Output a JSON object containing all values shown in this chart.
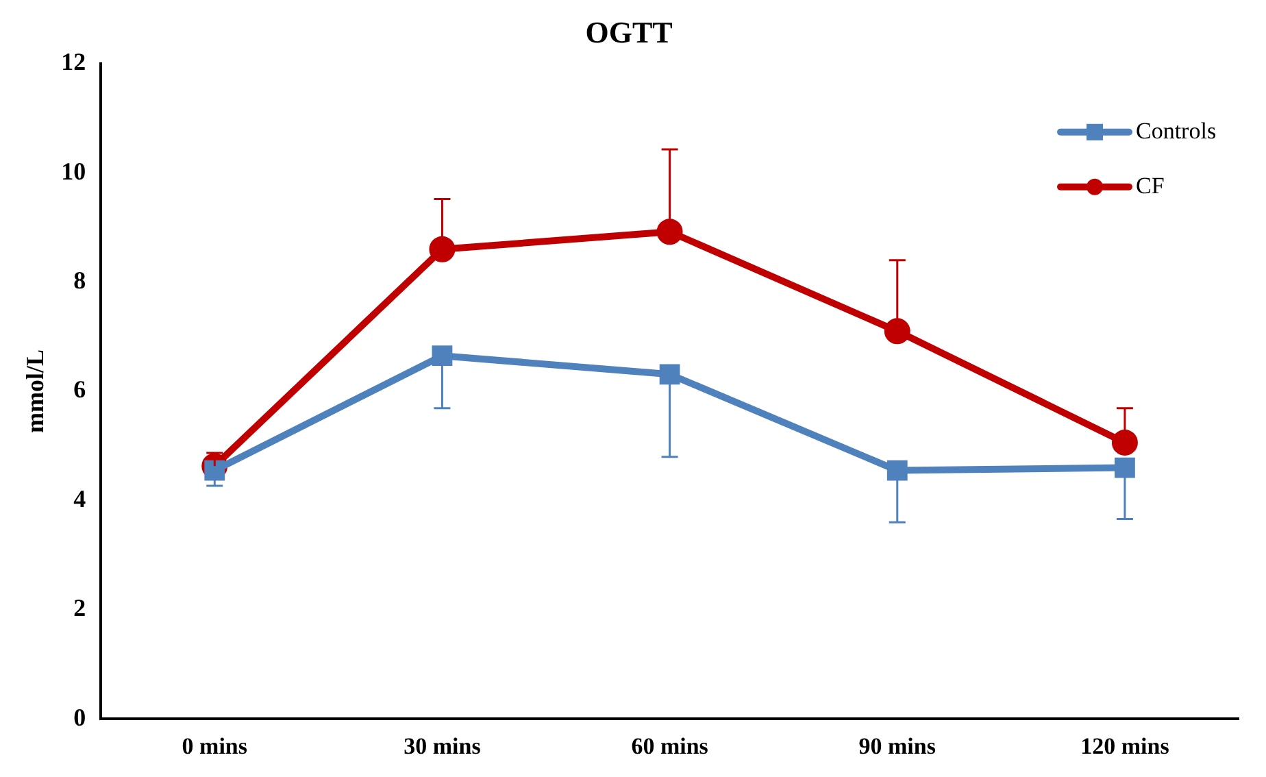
{
  "chart_data": {
    "type": "line",
    "title": "OGTT",
    "ylabel": "mmol/L",
    "categories": [
      "0 mins",
      "30 mins",
      "60 mins",
      "90 mins",
      "120 mins"
    ],
    "series": [
      {
        "name": "Controls",
        "color": "#4f81bd",
        "marker": "square",
        "values": [
          4.55,
          6.65,
          6.31,
          4.55,
          4.6
        ],
        "errors": [
          [
            4.27,
            4.55
          ],
          [
            5.69,
            6.65
          ],
          [
            4.8,
            6.31
          ],
          [
            3.6,
            4.55
          ],
          [
            3.66,
            4.6
          ]
        ]
      },
      {
        "name": "CF",
        "color": "#c00000",
        "marker": "circle",
        "values": [
          4.63,
          8.6,
          8.92,
          7.1,
          5.06
        ],
        "errors": [
          [
            4.63,
            4.87
          ],
          [
            8.6,
            9.52
          ],
          [
            8.92,
            10.43
          ],
          [
            7.1,
            8.4
          ],
          [
            5.06,
            5.69
          ]
        ]
      }
    ],
    "ylim": [
      0,
      12
    ],
    "yticks": [
      0,
      2,
      4,
      6,
      8,
      10,
      12
    ],
    "grid": false,
    "legend": "top right",
    "line_style": "solid"
  }
}
